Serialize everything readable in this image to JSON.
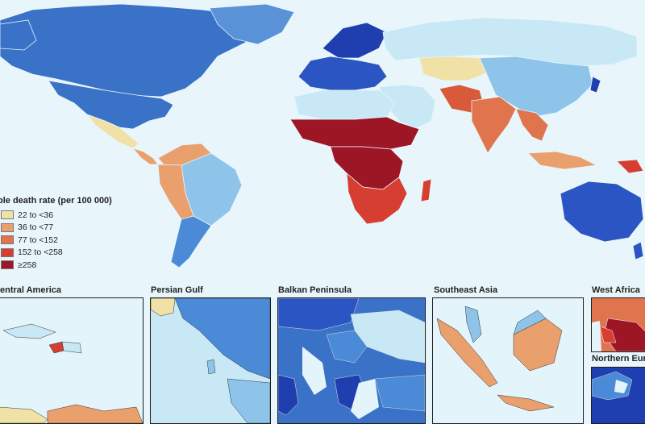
{
  "legend": {
    "title": "ble death rate (per 100 000)",
    "items": [
      {
        "label": "22 to <36",
        "color": "#f0e2a6"
      },
      {
        "label": "36 to <77",
        "color": "#eaa06c"
      },
      {
        "label": "77 to <152",
        "color": "#e0744c"
      },
      {
        "label": "152 to <258",
        "color": "#d63e32"
      },
      {
        "label": "≥258",
        "color": "#9c1626"
      }
    ]
  },
  "insets": [
    {
      "label": "entral America"
    },
    {
      "label": "Persian Gulf"
    },
    {
      "label": "Balkan Peninsula"
    },
    {
      "label": "Southeast Asia"
    },
    {
      "label": "West Africa"
    },
    {
      "label": "Northern Europ"
    }
  ],
  "colors": {
    "ocean": "#e8f6fb",
    "very_low": "#c9e8f6",
    "low": "#8ec4ea",
    "mid_low": "#4a8ad6",
    "lowest": "#1f3fb0"
  }
}
